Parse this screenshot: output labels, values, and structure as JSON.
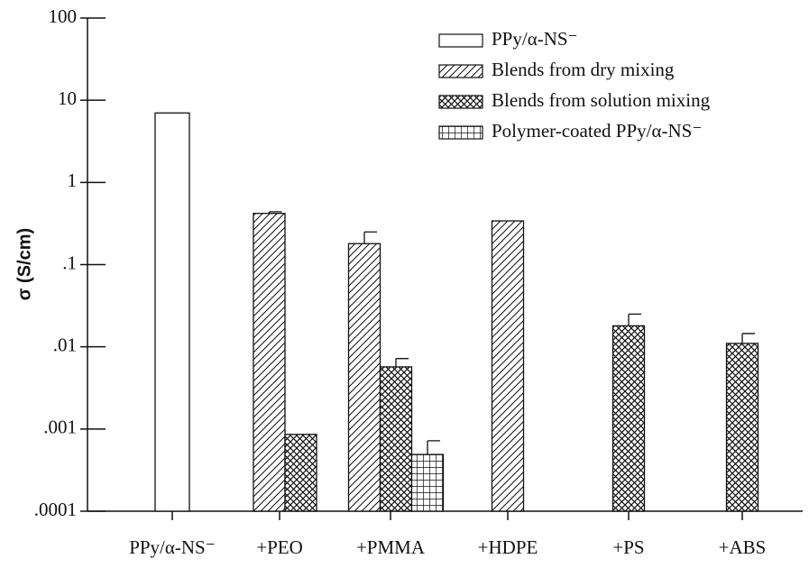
{
  "chart_data": {
    "type": "bar",
    "y_label": "σ (S/cm)",
    "categories": [
      "PPy/α-NS⁻",
      "+PEO",
      "+PMMA",
      "+HDPE",
      "+PS",
      "+ABS"
    ],
    "series": [
      {
        "name": "PPy/α-NS⁻",
        "color": "#111111",
        "pattern": "none",
        "values": [
          7,
          null,
          null,
          null,
          null,
          null
        ],
        "errors": [
          null,
          null,
          null,
          null,
          null,
          null
        ]
      },
      {
        "name": "Blends from dry mixing",
        "color": "#111111",
        "pattern": "diagonal",
        "values": [
          null,
          0.42,
          0.18,
          0.34,
          null,
          null
        ],
        "errors": [
          null,
          0.02,
          0.07,
          null,
          null,
          null
        ]
      },
      {
        "name": "Blends from solution mixing",
        "color": "#111111",
        "pattern": "crosshatch",
        "values": [
          null,
          0.00086,
          0.0057,
          null,
          0.018,
          0.011
        ],
        "errors": [
          null,
          null,
          0.0015,
          null,
          0.007,
          0.0035
        ]
      },
      {
        "name": "Polymer-coated PPy/α-NS⁻",
        "color": "#111111",
        "pattern": "grid",
        "values": [
          null,
          null,
          0.00049,
          null,
          null,
          null
        ],
        "errors": [
          null,
          null,
          0.00023,
          null,
          null,
          null
        ]
      }
    ],
    "log_scale": true,
    "ylim": [
      0.0001,
      100
    ],
    "yticks": [
      {
        "value": 0.0001,
        "label": ".0001"
      },
      {
        "value": 0.001,
        "label": ".001"
      },
      {
        "value": 0.01,
        "label": ".01"
      },
      {
        "value": 0.1,
        "label": ".1"
      },
      1,
      10,
      100
    ],
    "legend": "upper right"
  }
}
